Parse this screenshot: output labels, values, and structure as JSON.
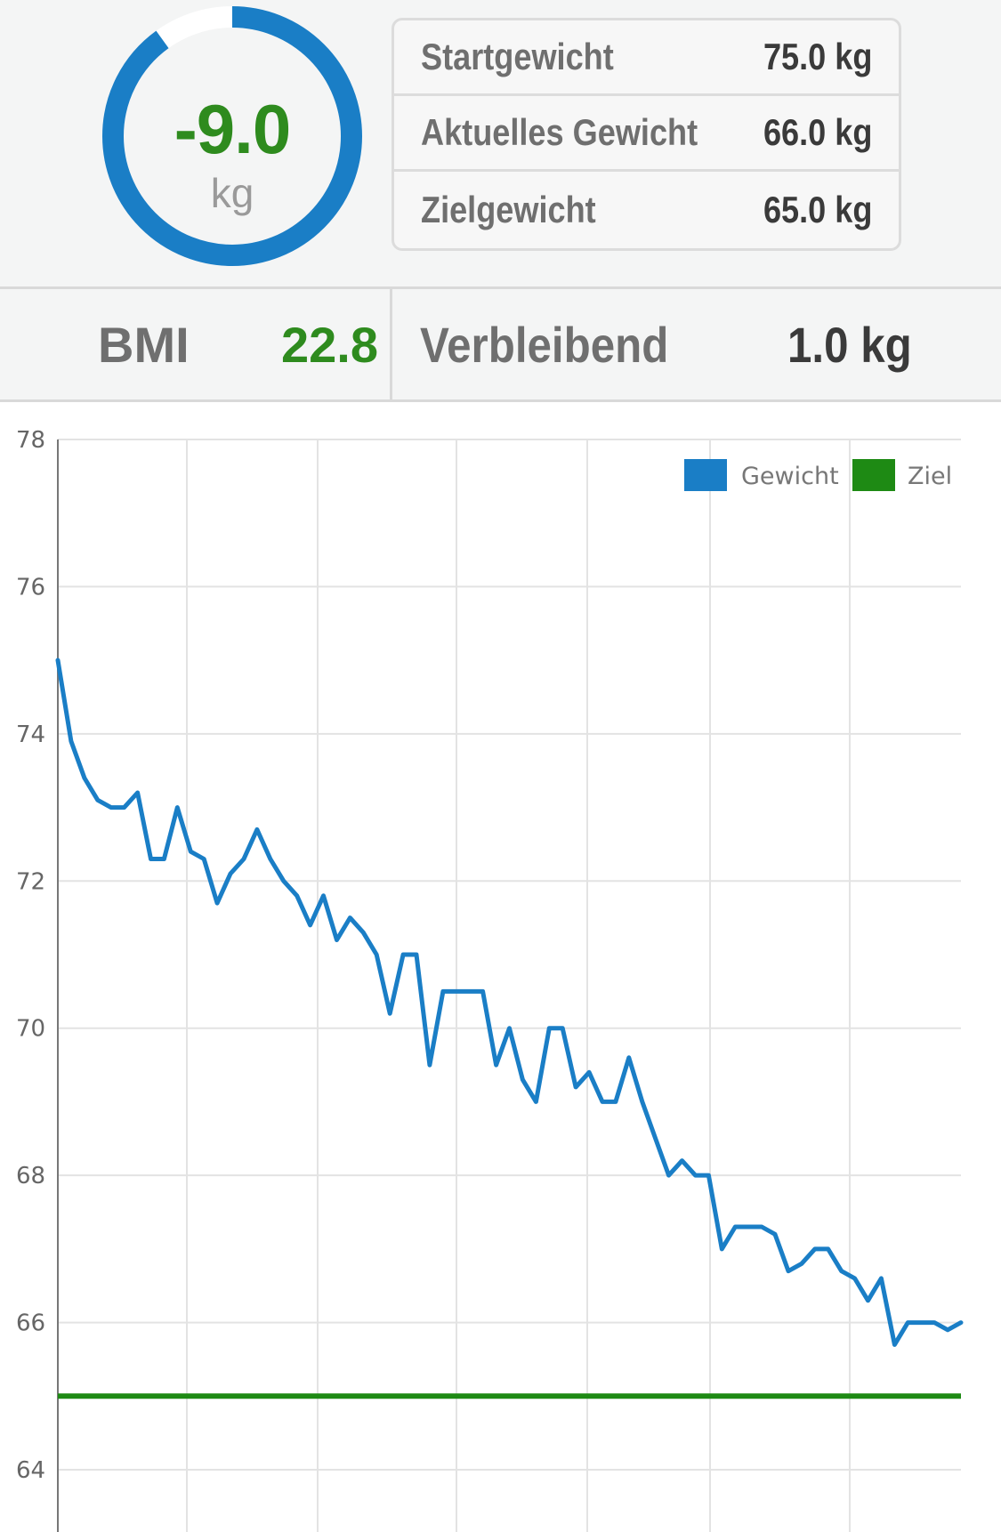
{
  "summary_ring": {
    "value": "-9.0",
    "unit": "kg",
    "progress": 0.9,
    "color_fill": "#1a7ec6",
    "color_track": "#ffffff"
  },
  "stats": [
    {
      "label": "Startgewicht",
      "value": "75.0 kg"
    },
    {
      "label": "Aktuelles Gewicht",
      "value": "66.0 kg"
    },
    {
      "label": "Zielgewicht",
      "value": "65.0 kg"
    }
  ],
  "bmi": {
    "label": "BMI",
    "value": "22.8"
  },
  "remaining": {
    "label": "Verbleibend",
    "value": "1.0 kg"
  },
  "chart_data": {
    "type": "line",
    "ylim": [
      64,
      78
    ],
    "yticks": [
      "64",
      "66",
      "68",
      "70",
      "72",
      "74",
      "76",
      "78"
    ],
    "grid": true,
    "legend_placement": "top-right",
    "series": [
      {
        "name": "Gewicht",
        "color": "#1a7ec6",
        "values": [
          75.0,
          73.9,
          73.4,
          73.1,
          73.0,
          73.0,
          73.2,
          72.3,
          72.3,
          73.0,
          72.4,
          72.3,
          71.7,
          72.1,
          72.3,
          72.7,
          72.3,
          72.0,
          71.8,
          71.4,
          71.8,
          71.2,
          71.5,
          71.3,
          71.0,
          70.2,
          71.0,
          71.0,
          69.5,
          70.5,
          70.5,
          70.5,
          70.5,
          69.5,
          70.0,
          69.3,
          69.0,
          70.0,
          70.0,
          69.2,
          69.4,
          69.0,
          69.0,
          69.6,
          69.0,
          68.5,
          68.0,
          68.2,
          68.0,
          68.0,
          67.0,
          67.3,
          67.3,
          67.3,
          67.2,
          66.7,
          66.8,
          67.0,
          67.0,
          66.7,
          66.6,
          66.3,
          66.6,
          65.7,
          66.0,
          66.0,
          66.0,
          65.9,
          66.0
        ]
      },
      {
        "name": "Ziel",
        "color": "#1e8a14",
        "values": [
          65.0,
          65.0
        ]
      }
    ]
  }
}
